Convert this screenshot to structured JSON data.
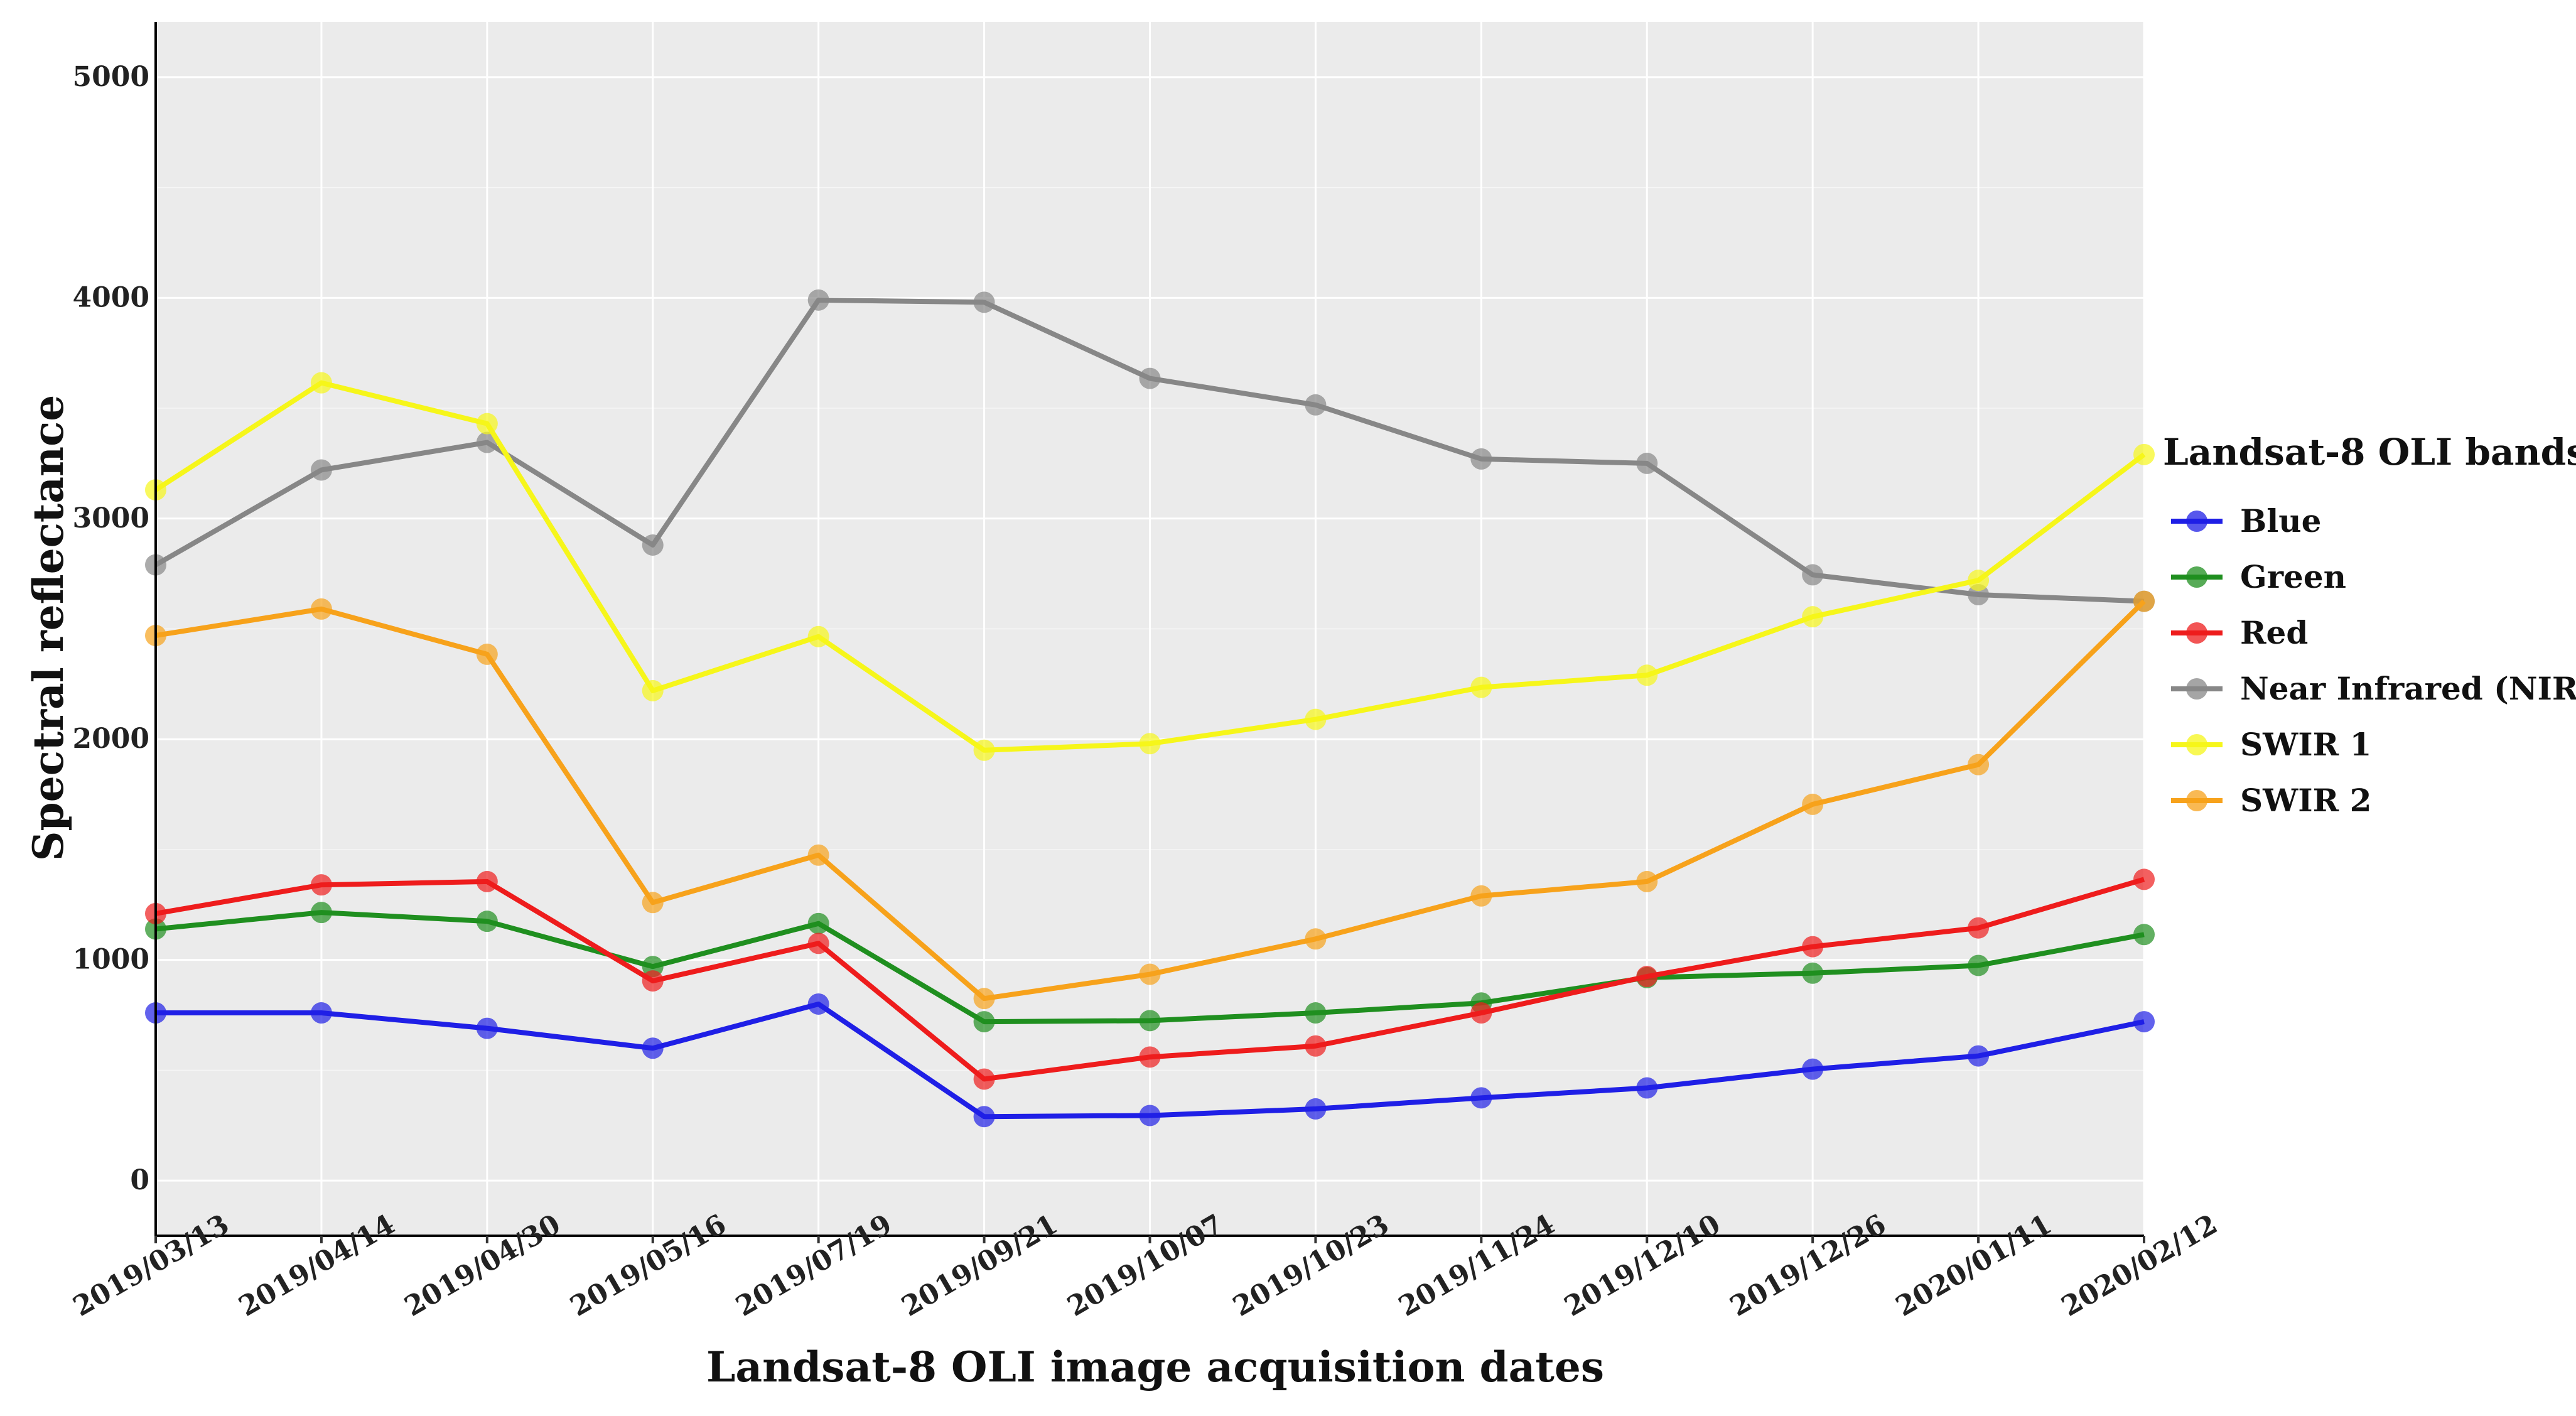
{
  "chart_data": {
    "type": "line",
    "title": "",
    "xlabel": "Landsat-8 OLI image acquisition dates",
    "ylabel": "Spectral reflectance",
    "categories": [
      "2019/03/13",
      "2019/04/14",
      "2019/04/30",
      "2019/05/16",
      "2019/07/19",
      "2019/09/21",
      "2019/10/07",
      "2019/10/23",
      "2019/11/24",
      "2019/12/10",
      "2019/12/26",
      "2020/01/11",
      "2020/02/12"
    ],
    "yticks": [
      0,
      1000,
      2000,
      3000,
      4000,
      5000
    ],
    "ylim": [
      -250,
      5250
    ],
    "grid": true,
    "legend": {
      "title": "Landsat-8 OLI bands",
      "placement": "right"
    },
    "series": [
      {
        "name": "Blue",
        "color": "#1f1fe6",
        "values": [
          760,
          760,
          690,
          600,
          800,
          290,
          295,
          325,
          375,
          420,
          505,
          565,
          720
        ]
      },
      {
        "name": "Green",
        "color": "#1f8f1f",
        "values": [
          1140,
          1215,
          1175,
          970,
          1165,
          720,
          725,
          760,
          805,
          920,
          940,
          975,
          1115
        ]
      },
      {
        "name": "Red",
        "color": "#ee1c1c",
        "values": [
          1210,
          1340,
          1355,
          905,
          1075,
          460,
          560,
          610,
          760,
          925,
          1060,
          1145,
          1365
        ]
      },
      {
        "name": "Near Infrared (NIR)",
        "color": "#878787",
        "values": [
          2790,
          3220,
          3345,
          2880,
          3990,
          3980,
          3635,
          3515,
          3270,
          3250,
          2745,
          2655,
          2625
        ]
      },
      {
        "name": "SWIR 1",
        "color": "#f6f61a",
        "values": [
          3130,
          3615,
          3430,
          2220,
          2465,
          1950,
          1980,
          2090,
          2235,
          2290,
          2555,
          2720,
          3290
        ]
      },
      {
        "name": "SWIR 2",
        "color": "#f7a21b",
        "values": [
          2470,
          2590,
          2385,
          1260,
          1475,
          825,
          935,
          1095,
          1290,
          1355,
          1705,
          1885,
          2625
        ]
      }
    ]
  }
}
